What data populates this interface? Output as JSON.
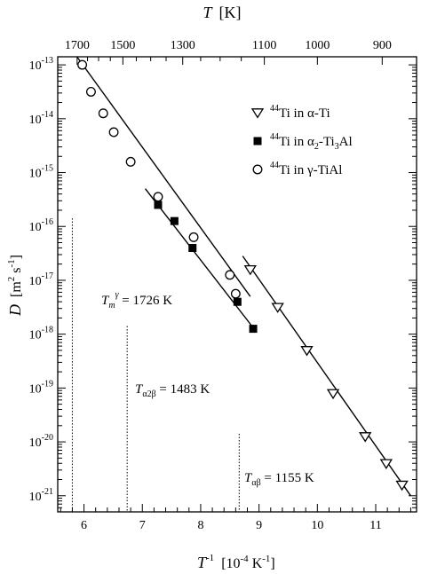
{
  "chart_data": {
    "type": "scatter",
    "x_axis": {
      "label": "T",
      "unit": "[10",
      "unit_sup": "-4",
      "unit_tail": " K",
      "unit_tail_sup": "-1",
      "unit_close": "]",
      "label_sup": "-1",
      "range": [
        5.55,
        11.7
      ],
      "ticks": [
        6,
        7,
        8,
        9,
        10,
        11
      ]
    },
    "top_axis": {
      "label": "T",
      "unit": "[K]",
      "ticks": [
        1700,
        1500,
        1300,
        1100,
        1000,
        900
      ]
    },
    "y_axis": {
      "label": "D",
      "unit": "[m",
      "unit_sup": "2",
      "unit_mid": " s",
      "unit_mid_sup": "-1",
      "unit_close": "]",
      "scale": "log",
      "range_exp": [
        -21.3,
        -12.85
      ],
      "ticks_exp": [
        -13,
        -14,
        -15,
        -16,
        -17,
        -18,
        -19,
        -20,
        -21
      ],
      "tick_base": "10"
    },
    "series": [
      {
        "name": "Ti in α-Ti",
        "name_sup": "44",
        "name_main": "Ti in α-Ti",
        "marker": "triangle-down-open",
        "points": [
          {
            "x": 8.85,
            "y_exp": -16.8
          },
          {
            "x": 9.32,
            "y_exp": -17.5
          },
          {
            "x": 9.82,
            "y_exp": -18.3
          },
          {
            "x": 10.27,
            "y_exp": -19.1
          },
          {
            "x": 10.82,
            "y_exp": -19.9
          },
          {
            "x": 11.18,
            "y_exp": -20.4
          },
          {
            "x": 11.45,
            "y_exp": -20.8
          }
        ],
        "fit": [
          {
            "x": 8.72,
            "y_exp": -16.55
          },
          {
            "x": 11.6,
            "y_exp": -21.0
          }
        ]
      },
      {
        "name": "Ti in α2-Ti3Al",
        "name_sup": "44",
        "name_main": "Ti in α",
        "name_sub": "2",
        "name_tail": "-Ti",
        "name_sub2": "3",
        "name_tail2": "Al",
        "marker": "square-filled",
        "points": [
          {
            "x": 7.27,
            "y_exp": -15.6
          },
          {
            "x": 7.55,
            "y_exp": -15.9
          },
          {
            "x": 7.86,
            "y_exp": -16.4
          },
          {
            "x": 8.63,
            "y_exp": -17.4
          },
          {
            "x": 8.9,
            "y_exp": -17.9
          }
        ],
        "fit": [
          {
            "x": 7.05,
            "y_exp": -15.3
          },
          {
            "x": 8.95,
            "y_exp": -17.95
          }
        ]
      },
      {
        "name": "Ti in γ-TiAl",
        "name_sup": "44",
        "name_main": "Ti in γ-TiAl",
        "marker": "circle-open",
        "points": [
          {
            "x": 5.97,
            "y_exp": -13.0
          },
          {
            "x": 6.12,
            "y_exp": -13.5
          },
          {
            "x": 6.33,
            "y_exp": -13.9
          },
          {
            "x": 6.51,
            "y_exp": -14.25
          },
          {
            "x": 6.8,
            "y_exp": -14.8
          },
          {
            "x": 7.27,
            "y_exp": -15.45
          },
          {
            "x": 7.88,
            "y_exp": -16.2
          },
          {
            "x": 8.5,
            "y_exp": -16.9
          },
          {
            "x": 8.6,
            "y_exp": -17.25
          }
        ],
        "fit": [
          {
            "x": 5.88,
            "y_exp": -12.85
          },
          {
            "x": 8.85,
            "y_exp": -17.3
          }
        ]
      }
    ],
    "reference_lines": [
      {
        "x": 5.8,
        "y_top_exp": -15.85,
        "label_main": "T",
        "label_sub": "m",
        "label_sup": "γ",
        "label_tail": " = 1726 K"
      },
      {
        "x": 6.74,
        "y_top_exp": -17.85,
        "label_main": "T",
        "label_sub": "α2β",
        "label_tail": " = 1483 K"
      },
      {
        "x": 8.66,
        "y_top_exp": -19.85,
        "label_main": "T",
        "label_sub": "αβ",
        "label_tail": " = 1155 K"
      }
    ],
    "legend_position": "top-right",
    "grid": false
  }
}
